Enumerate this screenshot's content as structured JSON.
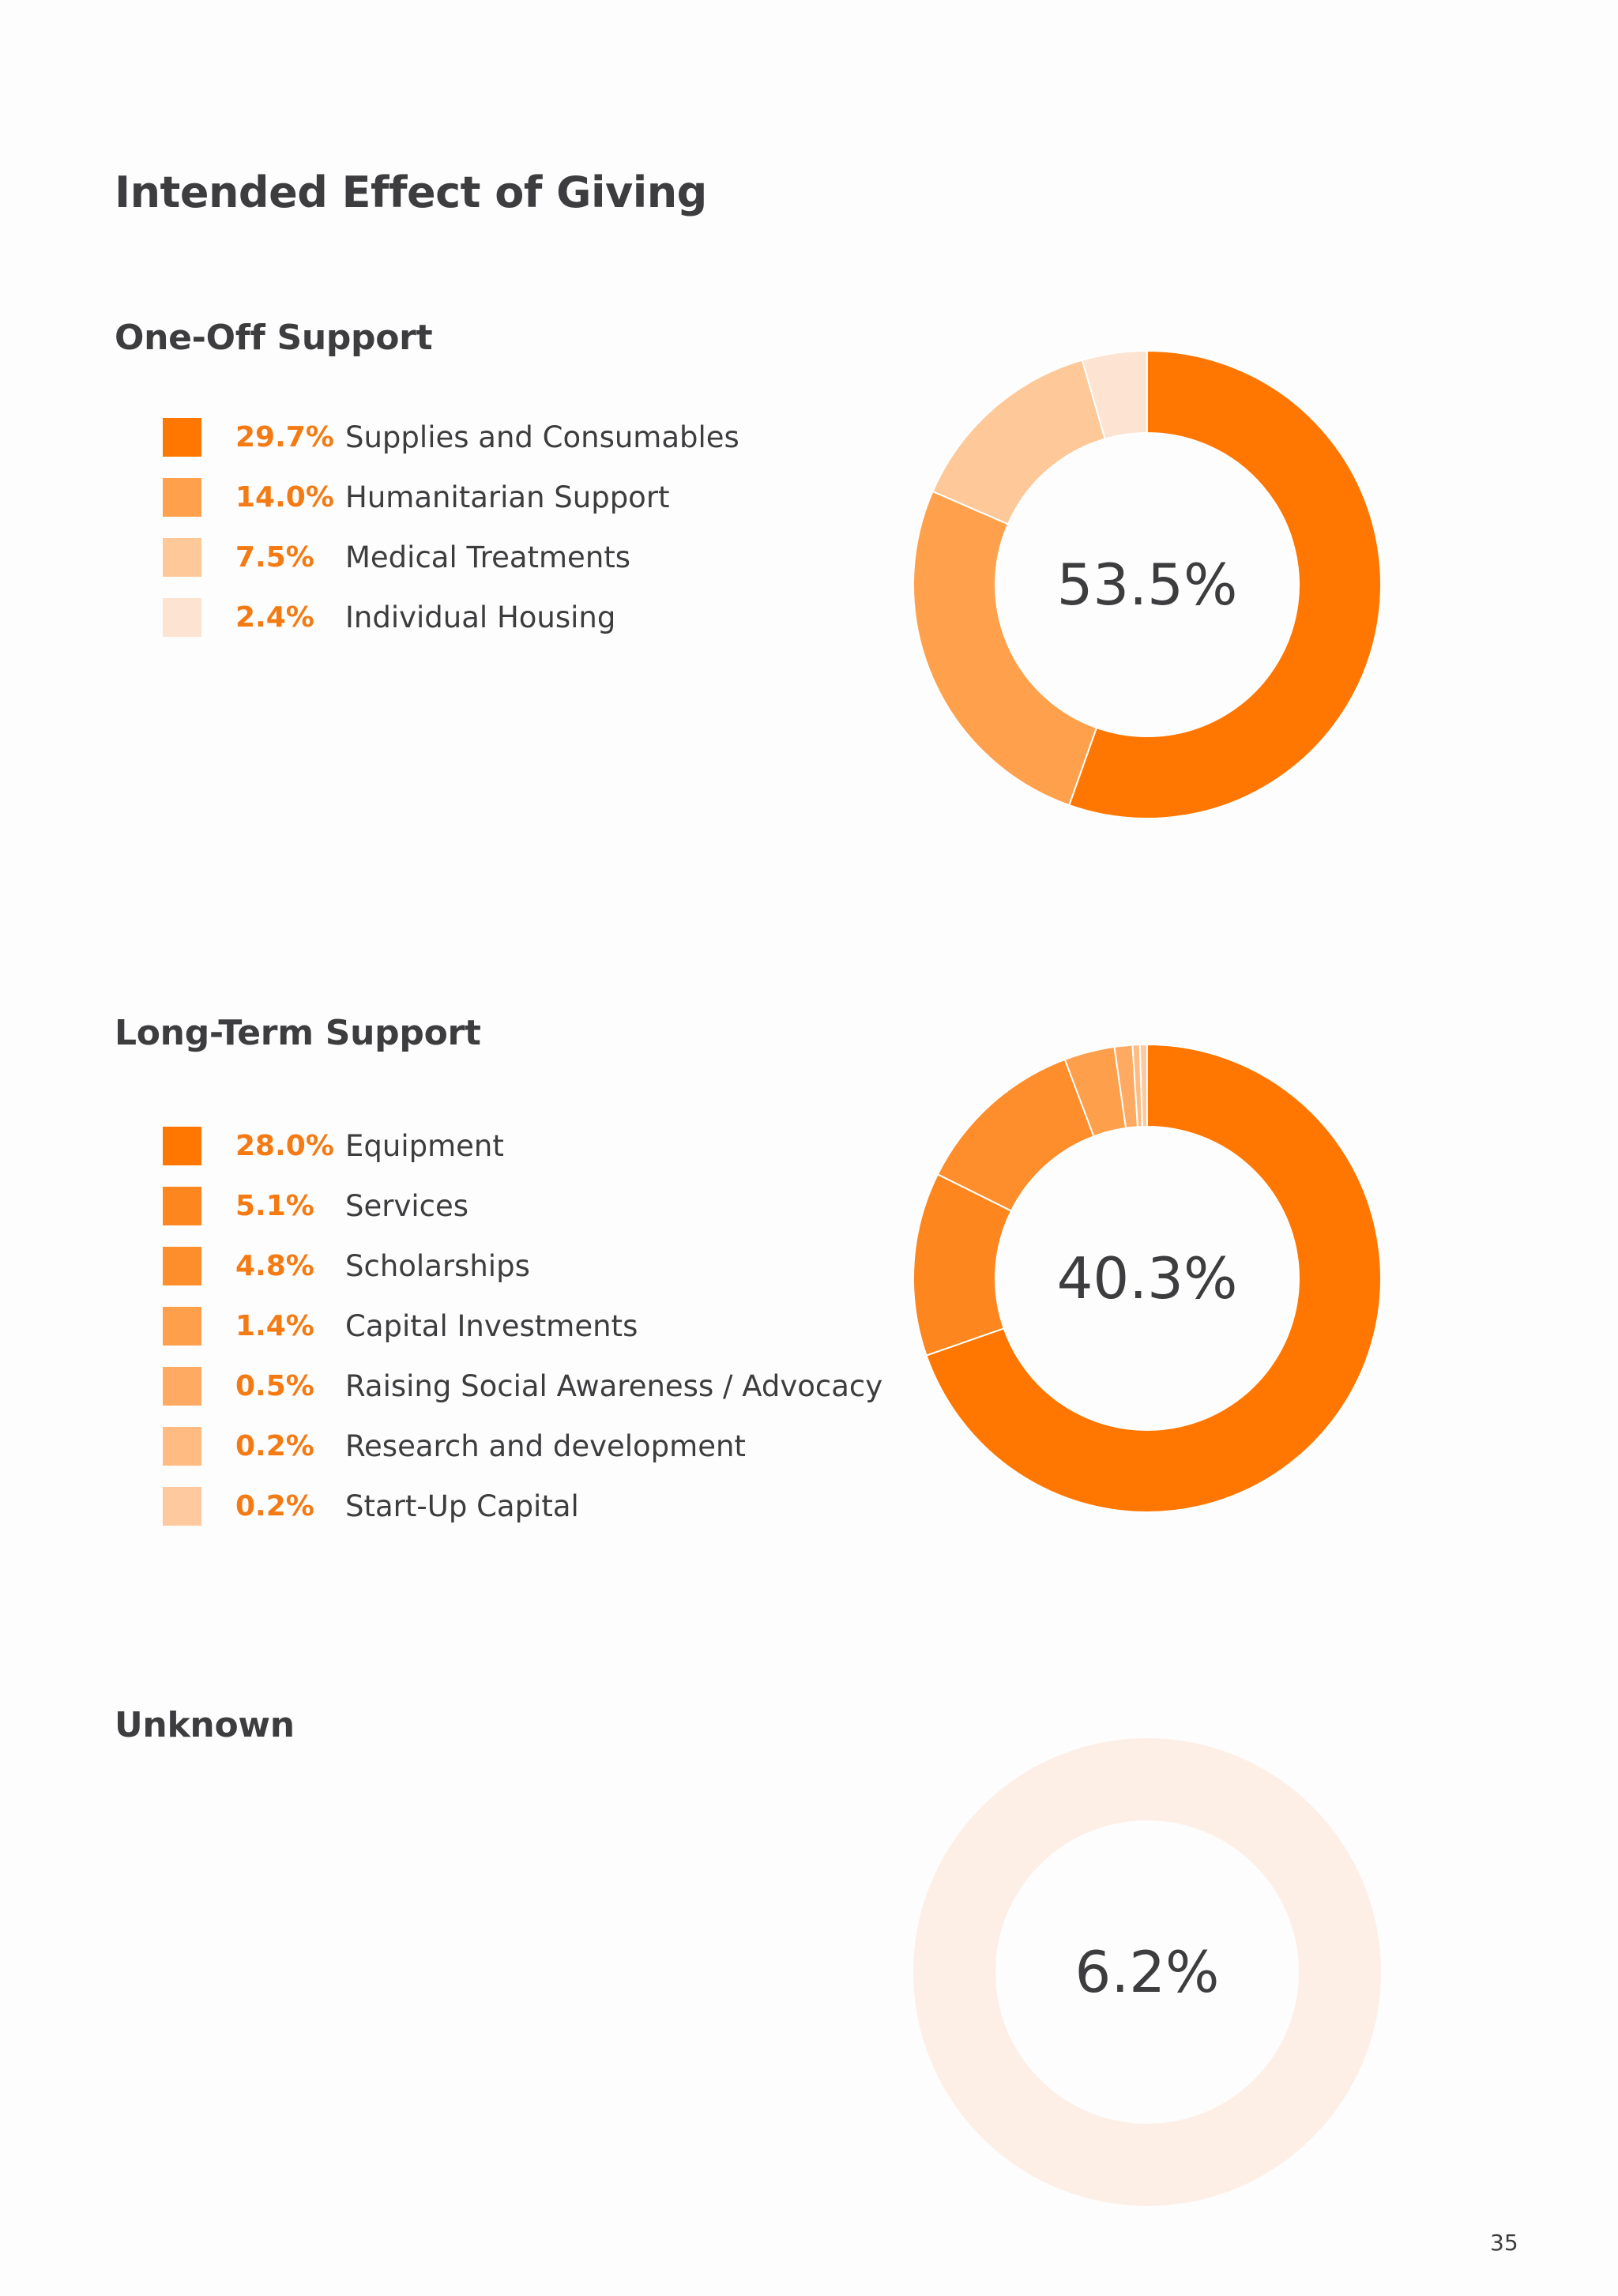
{
  "page": {
    "title": "Intended Effect of Giving",
    "page_number": "35"
  },
  "chart_data": [
    {
      "type": "pie",
      "title": "One-Off Support",
      "center_label": "53.5%",
      "slices": [
        {
          "label": "Supplies and Consumables",
          "value": 29.7,
          "value_label": "29.7%",
          "color": "#ff7700"
        },
        {
          "label": "Humanitarian Support",
          "value": 14.0,
          "value_label": "14.0%",
          "color": "#ffa14c"
        },
        {
          "label": "Medical Treatments",
          "value": 7.5,
          "value_label": "7.5%",
          "color": "#fec899"
        },
        {
          "label": "Individual Housing",
          "value": 2.4,
          "value_label": "2.4%",
          "color": "#fde3d1"
        }
      ]
    },
    {
      "type": "pie",
      "title": "Long-Term Support",
      "center_label": "40.3%",
      "slices": [
        {
          "label": "Equipment",
          "value": 28.0,
          "value_label": "28.0%",
          "color": "#ff7700"
        },
        {
          "label": "Services",
          "value": 5.1,
          "value_label": "5.1%",
          "color": "#fd861f"
        },
        {
          "label": "Scholarships",
          "value": 4.8,
          "value_label": "4.8%",
          "color": "#fe8d2b"
        },
        {
          "label": "Capital Investments",
          "value": 1.4,
          "value_label": "1.4%",
          "color": "#fe9f4b"
        },
        {
          "label": "Raising Social Awareness / Advocacy",
          "value": 0.5,
          "value_label": "0.5%",
          "color": "#feaa62"
        },
        {
          "label": "Research and development",
          "value": 0.2,
          "value_label": "0.2%",
          "color": "#ffbb82"
        },
        {
          "label": "Start-Up Capital",
          "value": 0.2,
          "value_label": "0.2%",
          "color": "#fec99e"
        }
      ]
    },
    {
      "type": "pie",
      "title": "Unknown",
      "center_label": "6.2%",
      "slices": [
        {
          "label": "",
          "value": 6.2,
          "value_label": "",
          "color": "#fdefe6"
        }
      ]
    }
  ]
}
